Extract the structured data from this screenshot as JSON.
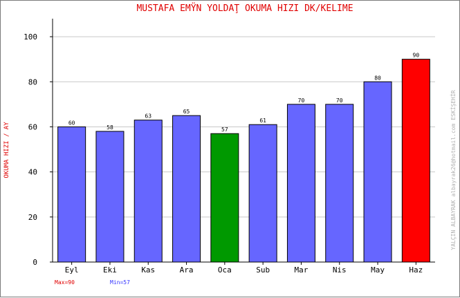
{
  "chart_data": {
    "type": "bar",
    "title": "MUSTAFA EMŸN YOLDAŢ    OKUMA HIZI  DK/KELIME",
    "ylabel": "OKUMA HIZI / AY",
    "xlabel": "",
    "categories": [
      "Eyl",
      "Eki",
      "Kas",
      "Ara",
      "Oca",
      "Sub",
      "Mar",
      "Nis",
      "May",
      "Haz"
    ],
    "values": [
      60,
      58,
      63,
      65,
      57,
      61,
      70,
      70,
      80,
      90
    ],
    "ylim": [
      0,
      108
    ],
    "yticks": [
      0,
      20,
      40,
      60,
      80,
      100
    ],
    "grid": true,
    "colors": {
      "default": "#6666ff",
      "max": "#ff0000",
      "min": "#009900",
      "grid": "#c8c8c8",
      "title": "#e00000"
    },
    "summary": {
      "max_label": "Max=90",
      "min_label": "Min=57"
    },
    "credit": "YALÇIN ALBAYRAK  albayrak26@hotmail.com  ESKİŞEHİR"
  }
}
